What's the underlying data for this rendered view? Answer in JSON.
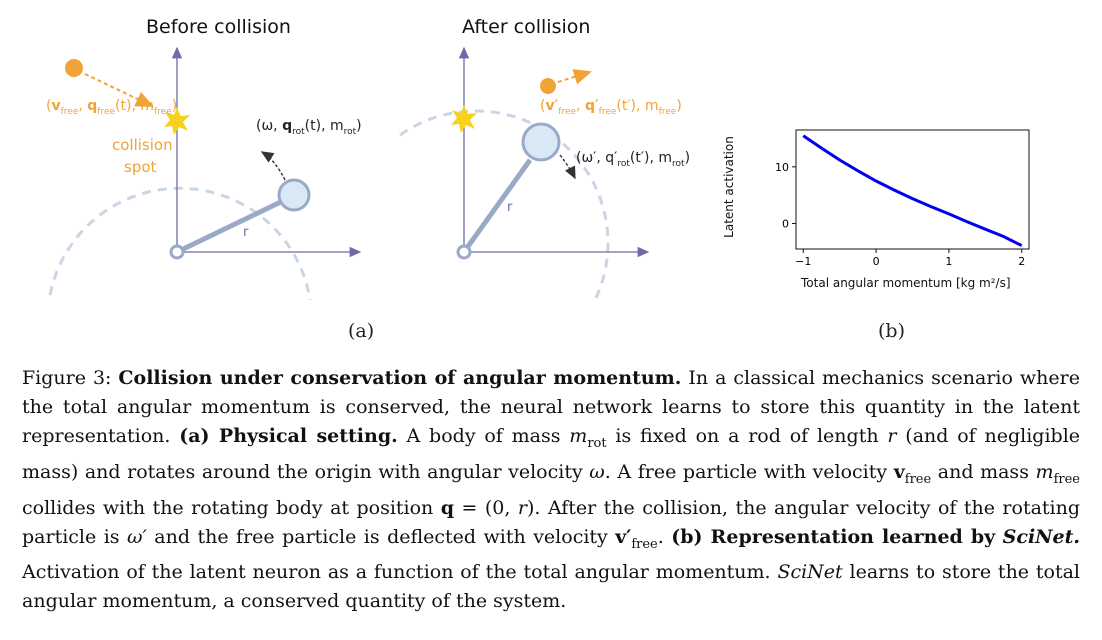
{
  "panel_a": {
    "before_title": "Before collision",
    "after_title": "After collision",
    "before_free_label": "(v_free, q_free(t), m_free)",
    "collision_label_1": "collision",
    "collision_label_2": "spot",
    "before_rot_label": "(ω, q_rot(t), m_rot)",
    "after_free_label": "(v'_free, q'_free(t'), m_free)",
    "after_rot_label": "(ω', q'_rot(t'), m_rot)",
    "rod_label": "r",
    "sub_label": "(a)",
    "colors": {
      "orange": "#f0a336",
      "axis": "#6f6aa8",
      "rod": "#9aa9c8",
      "mass_fill": "#d8e8f5",
      "dashed": "#c9d6e6",
      "star": "#f6d21c"
    }
  },
  "panel_b": {
    "sub_label": "(b)",
    "chart_data": {
      "type": "line",
      "xlabel": "Total angular momentum [kg m²/s]",
      "ylabel": "Latent activation",
      "x_ticks": [
        "−1",
        "0",
        "1",
        "2"
      ],
      "y_ticks": [
        "0",
        "10"
      ],
      "xlim": [
        -1.1,
        2.1
      ],
      "ylim": [
        -4.5,
        16.5
      ],
      "series": [
        {
          "color": "#0000ee",
          "x": [
            -1.0,
            -0.75,
            -0.5,
            -0.25,
            0.0,
            0.25,
            0.5,
            0.75,
            1.0,
            1.25,
            1.5,
            1.75,
            2.0
          ],
          "y": [
            15.5,
            13.3,
            11.2,
            9.3,
            7.5,
            5.9,
            4.4,
            3.0,
            1.7,
            0.3,
            -1.0,
            -2.3,
            -3.9
          ]
        }
      ]
    }
  },
  "caption": {
    "fig_label": "Figure 3:",
    "title": "Collision under conservation of angular momentum.",
    "t1": "In a classical mechanics scenario where the total angular momentum is conserved, the neural network learns to store this quantity in the latent representation.",
    "a_label": "(a) Physical setting.",
    "t2": "A body of mass",
    "m_rot": "m",
    "rot": "rot",
    "t3": "is fixed on a rod of length",
    "r": "r",
    "t4": "(and of negligible mass) and rotates around the origin with angular velocity",
    "omega": "ω",
    "t5": ". A free particle with velocity",
    "v": "v",
    "free": "free",
    "t6": "and mass",
    "m": "m",
    "t7": "collides with the rotating body at position",
    "q": "q",
    "t8": "= (0,",
    "t9": "). After the collision, the angular velocity of the rotating particle is",
    "omega_p": "ω′",
    "t10": "and the free particle is deflected with velocity",
    "v_p": "v′",
    "t11": ".",
    "b_label": "(b) Representation learned by",
    "scinet_b": "SciNet.",
    "t12": "Activation of the latent neuron as a function of the total angular momentum.",
    "scinet": "SciNet",
    "t13": "learns to store the total angular momentum, a conserved quantity of the system."
  }
}
